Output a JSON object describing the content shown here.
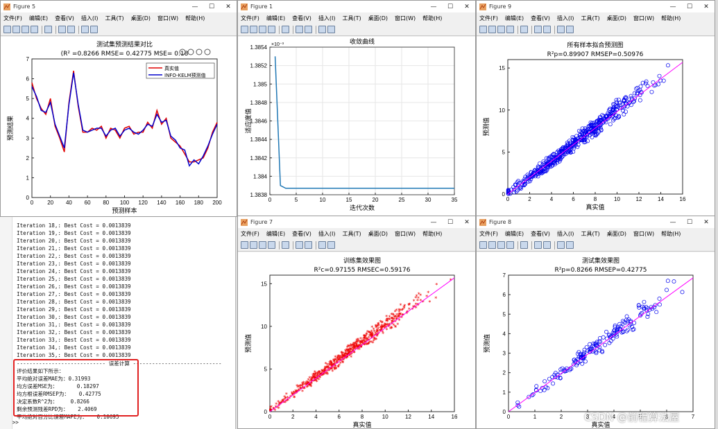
{
  "menus": [
    "文件(F)",
    "编辑(E)",
    "查看(V)",
    "插入(I)",
    "工具(T)",
    "桌面(D)",
    "窗口(W)",
    "帮助(H)"
  ],
  "window_controls": [
    "—",
    "☐",
    "✕"
  ],
  "figures": {
    "fig5": {
      "title": "Figure 5",
      "chart_title": "测试集预测结果对比",
      "subtitle": "(R² =0.8266 RMSE= 0.42775 MSE= 0.18",
      "xlabel": "预测样本",
      "ylabel": "预测结果",
      "legend": [
        "真实值",
        "INFO-KELM预测值"
      ],
      "xticks": [
        "0",
        "20",
        "40",
        "60",
        "80",
        "100",
        "120",
        "140",
        "160",
        "180",
        "200"
      ],
      "yticks": [
        "0",
        "1",
        "2",
        "3",
        "4",
        "5",
        "6",
        "7"
      ]
    },
    "fig1": {
      "title": "Figure 1",
      "chart_title": "收敛曲线",
      "exponent": "×10⁻³",
      "xlabel": "迭代次数",
      "ylabel": "适应度值",
      "xticks": [
        "0",
        "5",
        "10",
        "15",
        "20",
        "25",
        "30",
        "35"
      ],
      "yticks": [
        "1.3838",
        "1.384",
        "1.3842",
        "1.3844",
        "1.3846",
        "1.3848",
        "1.385",
        "1.3852",
        "1.3854"
      ]
    },
    "fig9": {
      "title": "Figure 9",
      "chart_title": "所有样本拟合预测图",
      "subtitle": "R²p=0.89907  RMSEP=0.50976",
      "xlabel": "真实值",
      "ylabel": "预测值",
      "xticks": [
        "0",
        "2",
        "4",
        "6",
        "8",
        "10",
        "12",
        "14",
        "16"
      ],
      "yticks": [
        "0",
        "5",
        "10",
        "15"
      ]
    },
    "fig7": {
      "title": "Figure 7",
      "chart_title": "训练集效果图",
      "subtitle": "R²c=0.97155  RMSEC=0.59176",
      "xlabel": "真实值",
      "ylabel": "预测值",
      "xticks": [
        "0",
        "2",
        "4",
        "6",
        "8",
        "10",
        "12",
        "14",
        "16"
      ],
      "yticks": [
        "0",
        "5",
        "10",
        "15"
      ]
    },
    "fig8": {
      "title": "Figure 8",
      "chart_title": "测试集效果图",
      "subtitle": "R²p=0.8266  RMSEP=0.42775",
      "xlabel": "真实值",
      "ylabel": "预测值",
      "xticks": [
        "0",
        "1",
        "2",
        "3",
        "4",
        "5",
        "6",
        "7"
      ],
      "yticks": [
        "0",
        "1",
        "2",
        "3",
        "4",
        "5",
        "6",
        "7"
      ]
    }
  },
  "console": {
    "iterations": [
      "Iteration 18,: Best Cost = 0.0013839",
      "Iteration 19,: Best Cost = 0.0013839",
      "Iteration 20,: Best Cost = 0.0013839",
      "Iteration 21,: Best Cost = 0.0013839",
      "Iteration 22,: Best Cost = 0.0013839",
      "Iteration 23,: Best Cost = 0.0013839",
      "Iteration 24,: Best Cost = 0.0013839",
      "Iteration 25,: Best Cost = 0.0013839",
      "Iteration 26,: Best Cost = 0.0013839",
      "Iteration 27,: Best Cost = 0.0013839",
      "Iteration 28,: Best Cost = 0.0013839",
      "Iteration 29,: Best Cost = 0.0013839",
      "Iteration 30,: Best Cost = 0.0013839",
      "Iteration 31,: Best Cost = 0.0013839",
      "Iteration 32,: Best Cost = 0.0013839",
      "Iteration 33,: Best Cost = 0.0013839",
      "Iteration 34,: Best Cost = 0.0013839",
      "Iteration 35,: Best Cost = 0.0013839"
    ],
    "section": "---------------------------- 误差计算 ----------------------------",
    "results": [
      "评价结果如下所示：",
      "平均绝对误差MAE为：0.31993",
      "均方误差MSE为：      0.18297",
      "均方根误差RMSEP为：   0.42775",
      "决定系数R^2为：    0.8266",
      "剩余预测残差RPD为：   2.4069",
      "平均绝对百分比误差MAPE为：   0.10695"
    ],
    "prompt": "fx >>"
  },
  "watermark": "CSDN @前程算法屋",
  "colors": {
    "true": "#e00000",
    "pred": "#0000cc",
    "conv": "#1f77b4",
    "scatter_blue": "#0000ee",
    "scatter_red": "#ee0000",
    "fit": "#ff00ff"
  },
  "chart_data": [
    {
      "type": "line",
      "id": "fig5",
      "title": "测试集预测结果对比",
      "xlabel": "预测样本",
      "ylabel": "预测结果",
      "xlim": [
        0,
        200
      ],
      "ylim": [
        0,
        7
      ],
      "x": [
        0,
        5,
        10,
        15,
        20,
        25,
        30,
        35,
        40,
        45,
        50,
        55,
        60,
        65,
        70,
        75,
        80,
        85,
        90,
        95,
        100,
        105,
        110,
        115,
        120,
        125,
        130,
        135,
        140,
        145,
        150,
        155,
        160,
        165,
        170,
        175,
        180,
        185,
        190,
        195,
        200
      ],
      "series": [
        {
          "name": "真实值",
          "values": [
            5.8,
            5.0,
            4.5,
            4.2,
            5.0,
            3.6,
            3.0,
            2.3,
            4.8,
            6.4,
            4.6,
            3.3,
            3.3,
            3.5,
            3.4,
            3.6,
            3.0,
            3.5,
            3.4,
            3.0,
            3.5,
            3.6,
            3.2,
            3.3,
            3.3,
            3.8,
            3.5,
            4.4,
            3.7,
            4.0,
            3.0,
            2.8,
            2.6,
            2.2,
            1.8,
            1.8,
            1.9,
            2.0,
            2.5,
            3.3,
            3.8
          ]
        },
        {
          "name": "INFO-KELM预测值",
          "values": [
            5.6,
            5.1,
            4.4,
            4.3,
            4.8,
            3.7,
            3.1,
            2.5,
            4.7,
            6.3,
            4.7,
            3.4,
            3.3,
            3.4,
            3.5,
            3.5,
            3.1,
            3.4,
            3.5,
            3.1,
            3.4,
            3.5,
            3.3,
            3.2,
            3.4,
            3.7,
            3.6,
            4.2,
            3.8,
            3.9,
            3.1,
            2.9,
            2.5,
            2.4,
            1.6,
            1.9,
            1.7,
            2.1,
            2.6,
            3.2,
            3.7
          ]
        }
      ]
    },
    {
      "type": "line",
      "id": "fig1",
      "title": "收敛曲线",
      "xlabel": "迭代次数",
      "ylabel": "适应度值",
      "xlim": [
        0,
        35
      ],
      "ylim": [
        1.3838,
        1.3854
      ],
      "exponent": "×10⁻³",
      "x": [
        1,
        2,
        3,
        35
      ],
      "values": [
        1.3853,
        1.3839,
        1.38387,
        1.38387
      ]
    },
    {
      "type": "scatter",
      "id": "fig9",
      "title": "所有样本拟合预测图",
      "xlim": [
        0,
        16
      ],
      "ylim": [
        0,
        16
      ],
      "count": 1000
    },
    {
      "type": "scatter",
      "id": "fig7",
      "title": "训练集效果图",
      "xlim": [
        0,
        16
      ],
      "ylim": [
        0,
        16
      ],
      "count": 800
    },
    {
      "type": "scatter",
      "id": "fig8",
      "title": "测试集效果图",
      "xlim": [
        0,
        7
      ],
      "ylim": [
        0,
        7
      ],
      "count": 200
    }
  ]
}
